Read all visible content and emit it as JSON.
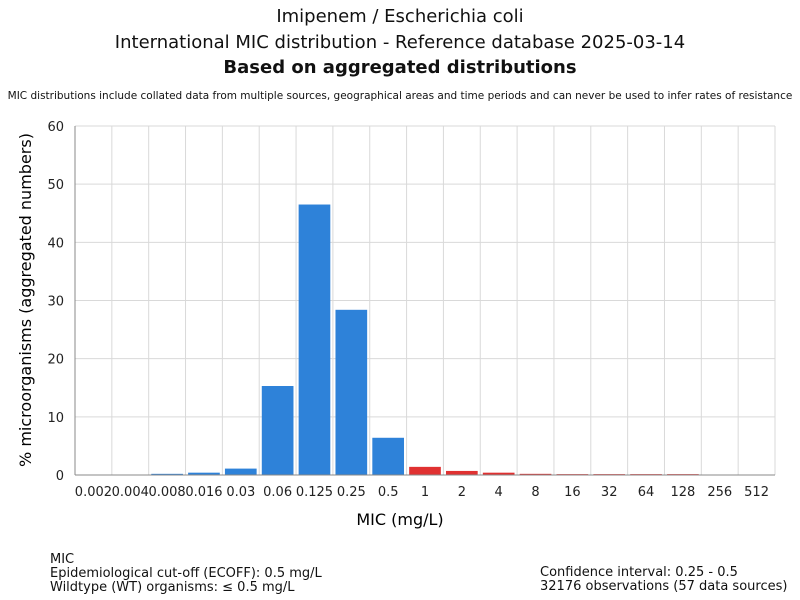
{
  "chart_data": {
    "type": "bar",
    "title_lines": [
      "Imipenem / Escherichia coli",
      "International MIC distribution - Reference database 2025-03-14",
      "Based on aggregated distributions"
    ],
    "subtitle": "MIC distributions include collated data from multiple sources, geographical areas and time periods and can never be used to infer rates of resistance",
    "xlabel": "MIC (mg/L)",
    "ylabel": "% microorganisms (aggregated numbers)",
    "ylim": [
      0,
      60
    ],
    "yticks": [
      0,
      10,
      20,
      30,
      40,
      50,
      60
    ],
    "grid": true,
    "categories": [
      "0.002",
      "0.004",
      "0.008",
      "0.016",
      "0.03",
      "0.06",
      "0.125",
      "0.25",
      "0.5",
      "1",
      "2",
      "4",
      "8",
      "16",
      "32",
      "64",
      "128",
      "256",
      "512"
    ],
    "values": [
      0,
      0,
      0.2,
      0.4,
      1.1,
      15.3,
      46.5,
      28.4,
      6.4,
      1.4,
      0.7,
      0.4,
      0.2,
      0.15,
      0.15,
      0.15,
      0.15,
      0,
      0
    ],
    "bar_colors": [
      "#2e82d9",
      "#2e82d9",
      "#2e82d9",
      "#2e82d9",
      "#2e82d9",
      "#2e82d9",
      "#2e82d9",
      "#2e82d9",
      "#2e82d9",
      "#e03131",
      "#e03131",
      "#e03131",
      "#e03131",
      "#e03131",
      "#e03131",
      "#e03131",
      "#e03131",
      "#e03131",
      "#e03131"
    ],
    "colors": {
      "wildtype": "#2e82d9",
      "non_wildtype": "#e03131",
      "grid": "#d9d9d9",
      "axis": "#888888"
    }
  },
  "footer": {
    "left": [
      "MIC",
      "Epidemiological cut-off (ECOFF): 0.5 mg/L",
      "Wildtype (WT) organisms: ≤ 0.5 mg/L"
    ],
    "right": [
      "Confidence interval: 0.25 - 0.5",
      "32176 observations (57 data sources)"
    ]
  }
}
